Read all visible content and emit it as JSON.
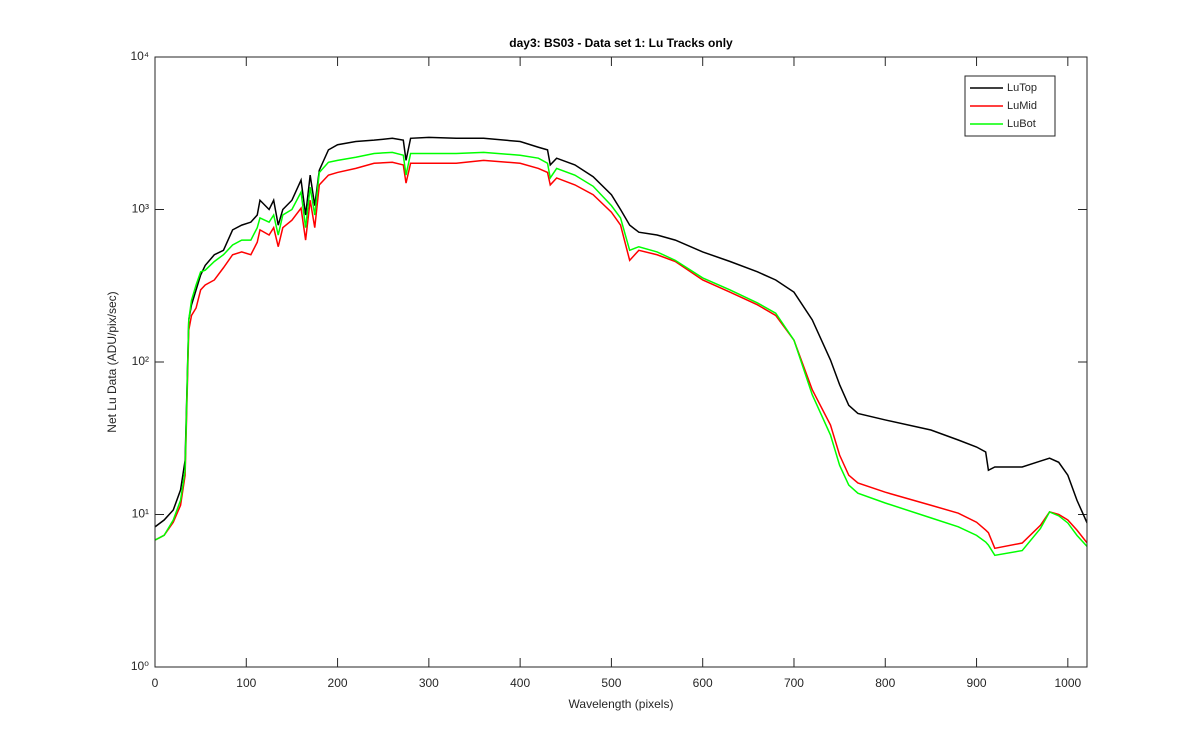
{
  "chart_data": {
    "type": "line",
    "title": "day3: BS03 - Data set 1: Lu Tracks only",
    "xlabel": "Wavelength (pixels)",
    "ylabel": "Net Lu Data (ADU/pix/sec)",
    "log_y": true,
    "legend": "upper right",
    "xlim": [
      0,
      1021
    ],
    "xticks": [
      0,
      100,
      200,
      300,
      400,
      500,
      600,
      700,
      800,
      900,
      1000
    ],
    "ylim": [
      1,
      10000
    ],
    "yticks": [
      {
        "value": 1,
        "label": "10⁰"
      },
      {
        "value": 10,
        "label": "10¹"
      },
      {
        "value": 100,
        "label": "10²"
      },
      {
        "value": 1000,
        "label": "10³"
      },
      {
        "value": 10000,
        "label": "10⁴"
      }
    ],
    "x": [
      0,
      10,
      20,
      28,
      33,
      37,
      40,
      45,
      50,
      55,
      65,
      75,
      85,
      95,
      105,
      112,
      115,
      125,
      130,
      135,
      140,
      150,
      160,
      165,
      170,
      175,
      180,
      190,
      200,
      220,
      240,
      260,
      272,
      275,
      280,
      300,
      330,
      360,
      400,
      420,
      430,
      433,
      440,
      460,
      480,
      500,
      510,
      520,
      530,
      550,
      570,
      600,
      630,
      660,
      680,
      700,
      720,
      740,
      750,
      760,
      770,
      800,
      850,
      880,
      900,
      910,
      913,
      920,
      950,
      970,
      980,
      990,
      1000,
      1010,
      1023
    ],
    "series": [
      {
        "name": "LuTop",
        "color": "#000000",
        "values": [
          8.3,
          9.2,
          10.7,
          14.5,
          22.7,
          189,
          237,
          297,
          372,
          430,
          505,
          540,
          735,
          790,
          826,
          920,
          1150,
          1000,
          1150,
          790,
          1000,
          1150,
          1560,
          920,
          1680,
          1060,
          1810,
          2460,
          2660,
          2790,
          2850,
          2930,
          2850,
          2100,
          2930,
          2970,
          2930,
          2930,
          2790,
          2560,
          2460,
          1960,
          2170,
          1960,
          1640,
          1250,
          1000,
          790,
          710,
          680,
          630,
          527,
          456,
          390,
          345,
          287,
          189,
          103,
          71,
          52,
          46,
          41.7,
          35.8,
          30.8,
          27.7,
          25.7,
          19.5,
          20.5,
          20.5,
          22.4,
          23.4,
          22,
          18.1,
          12.4,
          8.3
        ]
      },
      {
        "name": "LuMid",
        "color": "#ff0000",
        "values": [
          6.8,
          7.3,
          8.9,
          11.5,
          18.1,
          162,
          202,
          226,
          297,
          320,
          345,
          415,
          505,
          527,
          505,
          610,
          735,
          680,
          760,
          570,
          760,
          850,
          1020,
          630,
          1150,
          760,
          1450,
          1680,
          1750,
          1860,
          2010,
          2040,
          1960,
          1490,
          2010,
          2010,
          2010,
          2100,
          2010,
          1860,
          1750,
          1450,
          1610,
          1450,
          1250,
          960,
          790,
          464,
          540,
          505,
          456,
          345,
          287,
          237,
          202,
          139,
          65.8,
          38.6,
          24.5,
          18.1,
          16.1,
          14.0,
          11.5,
          10.2,
          8.9,
          7.9,
          7.6,
          6.0,
          6.5,
          8.5,
          10.4,
          10.0,
          9.2,
          7.9,
          6.3
        ]
      },
      {
        "name": "LuBot",
        "color": "#00ff00",
        "values": [
          6.8,
          7.3,
          9.2,
          12.4,
          19.5,
          189,
          254,
          320,
          390,
          400,
          456,
          505,
          585,
          630,
          630,
          760,
          880,
          826,
          920,
          680,
          920,
          1000,
          1300,
          760,
          1400,
          920,
          1750,
          2040,
          2100,
          2200,
          2330,
          2370,
          2270,
          1680,
          2330,
          2330,
          2330,
          2370,
          2270,
          2170,
          2010,
          1610,
          1860,
          1680,
          1420,
          1060,
          880,
          540,
          570,
          527,
          464,
          356,
          297,
          244,
          209,
          139,
          61,
          33.2,
          21,
          15.6,
          13.8,
          11.9,
          9.5,
          8.3,
          7.3,
          6.6,
          6.3,
          5.4,
          5.8,
          8.1,
          10.4,
          9.8,
          8.8,
          7.3,
          6.0
        ]
      }
    ]
  }
}
